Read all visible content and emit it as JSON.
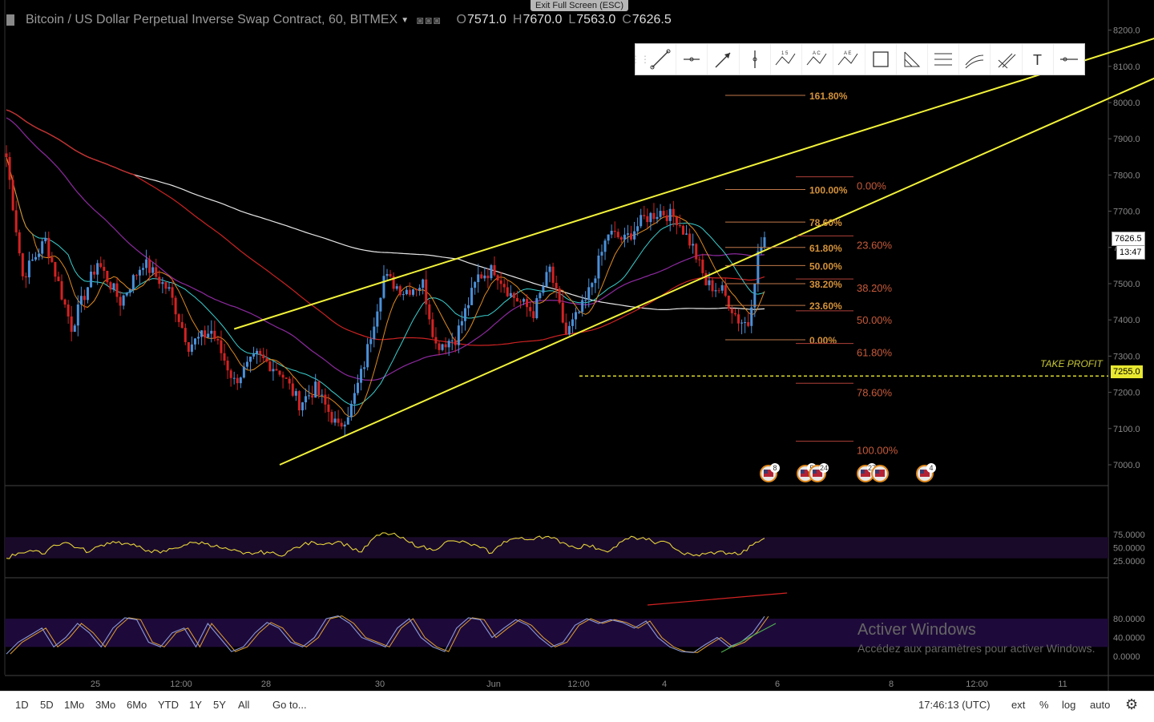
{
  "header": {
    "title": "Bitcoin / US Dollar Perpetual Inverse Swap Contract, 60, BITMEX",
    "open_label": "O",
    "open": "7571.0",
    "high_label": "H",
    "high": "7670.0",
    "low_label": "L",
    "low": "7563.0",
    "close_label": "C",
    "close": "7626.5"
  },
  "exit_fullscreen": "Exit Full Screen (ESC)",
  "toolbar_icons": [
    "trend-line-icon",
    "horizontal-ray-icon",
    "arrow-icon",
    "vertical-line-icon",
    "abcd-pattern-icon",
    "abc-pattern-icon",
    "elliott-wave-icon",
    "rectangle-icon",
    "fib-retracement-icon",
    "parallel-channel-icon",
    "regression-icon",
    "pitchfork-icon",
    "text-icon",
    "horizontal-line-icon"
  ],
  "colors": {
    "up": "#4a90d9",
    "down": "#d42222",
    "channel": "#f2f23a",
    "ma_white": "#e6e6e6",
    "ma_red": "#cc2222",
    "ma_purple": "#8e2aa0",
    "ma_cyan": "#3ad0d0",
    "ma_orange": "#e08a1e",
    "fib": "#d4923a",
    "fib_red": "#c75a3a"
  },
  "current_price": "7626.5",
  "countdown": "13:47",
  "take_profit_label": "TAKE PROFIT",
  "take_profit_price": "7255.0",
  "events": [
    {
      "label": "8",
      "x_date": "Jun 4 21:00"
    },
    {
      "label": "5",
      "x_date": "Jun 5 07:00"
    },
    {
      "label": "24",
      "x_date": "Jun 5 09:00"
    },
    {
      "label": "27",
      "x_date": "Jun 6 17:00"
    },
    {
      "label": "",
      "x_date": "Jun 6 19:00"
    },
    {
      "label": "4",
      "x_date": "Jun 7 11:00"
    }
  ],
  "chart_data": [
    {
      "type": "candlestick",
      "panel": "price",
      "x_axis": {
        "ticks": [
          "25",
          "12:00",
          "28",
          "30",
          "Jun",
          "12:00",
          "4",
          "6",
          "8",
          "12:00",
          "11"
        ]
      },
      "y_axis": {
        "ticks": [
          "7000.0",
          "7100.0",
          "7200.0",
          "7300.0",
          "7400.0",
          "7500.0",
          "7600.0",
          "7700.0",
          "7800.0",
          "7900.0",
          "8000.0",
          "8100.0",
          "8200.0"
        ],
        "range": [
          6950,
          8240
        ]
      },
      "price_path": [
        [
          0,
          7850
        ],
        [
          5,
          7520
        ],
        [
          12,
          7620
        ],
        [
          20,
          7380
        ],
        [
          28,
          7560
        ],
        [
          35,
          7450
        ],
        [
          42,
          7560
        ],
        [
          50,
          7480
        ],
        [
          56,
          7330
        ],
        [
          63,
          7370
        ],
        [
          70,
          7230
        ],
        [
          77,
          7300
        ],
        [
          84,
          7260
        ],
        [
          90,
          7170
        ],
        [
          95,
          7210
        ],
        [
          102,
          7100
        ],
        [
          106,
          7160
        ],
        [
          110,
          7280
        ],
        [
          116,
          7520
        ],
        [
          122,
          7480
        ],
        [
          128,
          7500
        ],
        [
          132,
          7330
        ],
        [
          138,
          7350
        ],
        [
          145,
          7520
        ],
        [
          150,
          7540
        ],
        [
          155,
          7470
        ],
        [
          162,
          7420
        ],
        [
          167,
          7540
        ],
        [
          172,
          7360
        ],
        [
          178,
          7450
        ],
        [
          185,
          7640
        ],
        [
          190,
          7620
        ],
        [
          196,
          7680
        ],
        [
          201,
          7700
        ],
        [
          206,
          7680
        ],
        [
          211,
          7600
        ],
        [
          215,
          7500
        ],
        [
          220,
          7480
        ],
        [
          225,
          7400
        ],
        [
          228,
          7390
        ],
        [
          231,
          7580
        ],
        [
          233,
          7626
        ]
      ],
      "fib_retracement_1": {
        "levels": [
          [
            "161.80%",
            8020
          ],
          [
            "100.00%",
            7760
          ],
          [
            "78.60%",
            7670
          ],
          [
            "61.80%",
            7600
          ],
          [
            "50.00%",
            7550
          ],
          [
            "38.20%",
            7500
          ],
          [
            "23.60%",
            7440
          ],
          [
            "0.00%",
            7345
          ]
        ]
      },
      "fib_retracement_2": {
        "levels": [
          [
            "0.00%",
            7795
          ],
          [
            "23.60%",
            7632
          ],
          [
            "38.20%",
            7513
          ],
          [
            "50.00%",
            7425
          ],
          [
            "61.80%",
            7335
          ],
          [
            "78.60%",
            7225
          ],
          [
            "100.00%",
            7065
          ]
        ]
      },
      "channel": {
        "upper": [
          [
            70,
            7375
          ],
          [
            375,
            8240
          ]
        ],
        "lower": [
          [
            84,
            7000
          ],
          [
            380,
            8175
          ]
        ]
      }
    },
    {
      "type": "line",
      "panel": "rsi",
      "y_axis": {
        "ticks": [
          "25.0000",
          "50.0000",
          "75.0000"
        ],
        "range": [
          15,
          85
        ]
      },
      "band": [
        30,
        70
      ],
      "values": [
        30,
        40,
        45,
        38,
        55,
        60,
        50,
        42,
        55,
        62,
        58,
        52,
        45,
        40,
        48,
        55,
        60,
        58,
        50,
        45,
        38,
        40,
        42,
        35,
        45,
        55,
        60,
        58,
        62,
        52,
        42,
        68,
        78,
        72,
        60,
        52,
        45,
        60,
        62,
        58,
        50,
        40,
        62,
        68,
        65,
        72,
        68,
        60,
        50,
        55,
        48,
        45,
        62,
        70,
        65,
        60,
        58,
        40,
        35,
        38,
        42,
        40,
        38,
        55,
        68
      ]
    },
    {
      "type": "line",
      "panel": "stoch_rsi",
      "y_axis": {
        "ticks": [
          "0.0000",
          "40.0000",
          "80.0000"
        ],
        "range": [
          -20,
          110
        ]
      },
      "band": [
        20,
        80
      ],
      "values": [
        5,
        30,
        45,
        60,
        20,
        40,
        70,
        50,
        20,
        60,
        82,
        78,
        30,
        20,
        50,
        60,
        20,
        70,
        40,
        10,
        20,
        50,
        72,
        60,
        30,
        20,
        40,
        80,
        86,
        70,
        40,
        30,
        20,
        60,
        80,
        40,
        20,
        10,
        60,
        82,
        78,
        40,
        60,
        78,
        66,
        40,
        20,
        30,
        66,
        80,
        70,
        78,
        72,
        60,
        75,
        40,
        20,
        10,
        8,
        25,
        40,
        20,
        30,
        50,
        85
      ]
    }
  ],
  "stoch_annotations": {
    "red_trendline": "rising",
    "green_trendline": "rising"
  },
  "bottom_bar": {
    "ranges": [
      "1D",
      "5D",
      "1Mo",
      "3Mo",
      "6Mo",
      "YTD",
      "1Y",
      "5Y",
      "All"
    ],
    "goto": "Go to...",
    "time": "17:46:13 (UTC)",
    "ext": "ext",
    "percent": "%",
    "log": "log",
    "auto": "auto"
  },
  "watermark": {
    "line1": "Activer Windows",
    "line2": "Accédez aux paramètres pour activer Windows."
  }
}
